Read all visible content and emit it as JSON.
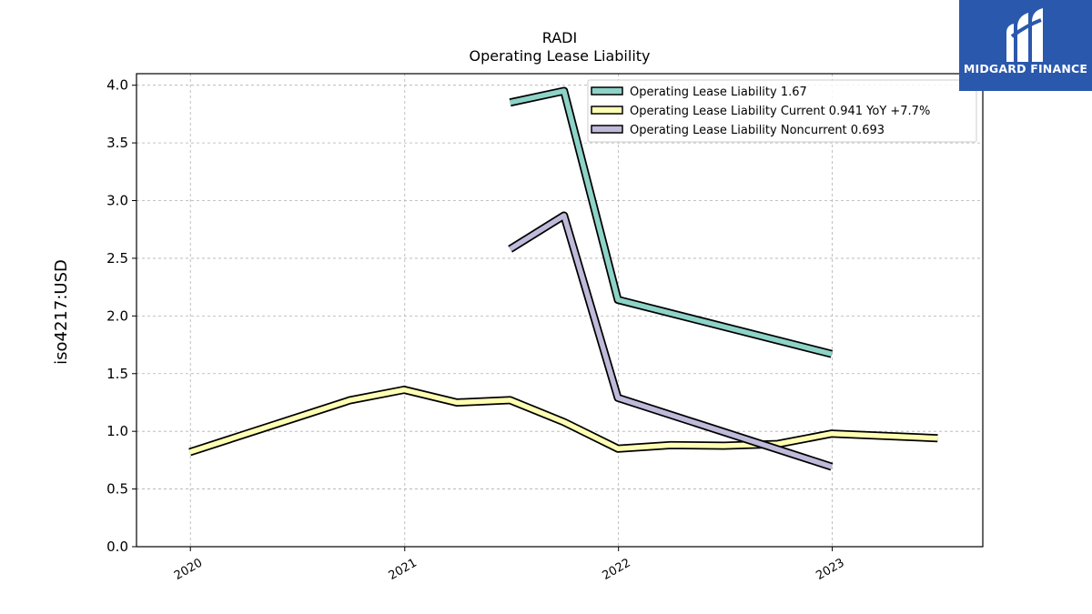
{
  "chart_data": {
    "type": "line",
    "title": "RADI",
    "subtitle": "Operating Lease Liability",
    "xlabel": "",
    "ylabel": "iso4217:USD",
    "x_ticks": [
      "2020",
      "2021",
      "2022",
      "2023"
    ],
    "y_ticks": [
      "0.0",
      "0.5",
      "1.0",
      "1.5",
      "2.0",
      "2.5",
      "3.0",
      "3.5",
      "4.0"
    ],
    "xlim": [
      "2019-10-01",
      "2023-09-15"
    ],
    "ylim": [
      0,
      4.1
    ],
    "grid": true,
    "legend_position": "top-right",
    "series": [
      {
        "name": "Operating Lease Liability  1.67",
        "color": "#8dd3c7",
        "points": [
          {
            "x": "2021-06-30",
            "y": 3.85
          },
          {
            "x": "2021-09-30",
            "y": 3.95
          },
          {
            "x": "2021-12-31",
            "y": 2.14
          },
          {
            "x": "2022-12-31",
            "y": 1.67
          }
        ]
      },
      {
        "name": "Operating Lease Liability Current  0.941 YoY +7.7%",
        "color": "#ffffb3",
        "points": [
          {
            "x": "2019-12-31",
            "y": 0.82
          },
          {
            "x": "2020-09-30",
            "y": 1.27
          },
          {
            "x": "2020-12-31",
            "y": 1.36
          },
          {
            "x": "2021-03-31",
            "y": 1.25
          },
          {
            "x": "2021-06-30",
            "y": 1.27
          },
          {
            "x": "2021-09-30",
            "y": 1.08
          },
          {
            "x": "2021-12-31",
            "y": 0.85
          },
          {
            "x": "2022-03-31",
            "y": 0.88
          },
          {
            "x": "2022-06-30",
            "y": 0.875
          },
          {
            "x": "2022-09-30",
            "y": 0.89
          },
          {
            "x": "2022-12-31",
            "y": 0.98
          },
          {
            "x": "2023-06-30",
            "y": 0.941
          }
        ]
      },
      {
        "name": "Operating Lease Liability Noncurrent  0.693",
        "color": "#bebada",
        "points": [
          {
            "x": "2021-06-30",
            "y": 2.58
          },
          {
            "x": "2021-09-30",
            "y": 2.87
          },
          {
            "x": "2021-12-31",
            "y": 1.29
          },
          {
            "x": "2022-12-31",
            "y": 0.693
          }
        ]
      }
    ]
  },
  "logo": {
    "text": "MIDGARD FINANCE",
    "color": "#2a58ad"
  }
}
